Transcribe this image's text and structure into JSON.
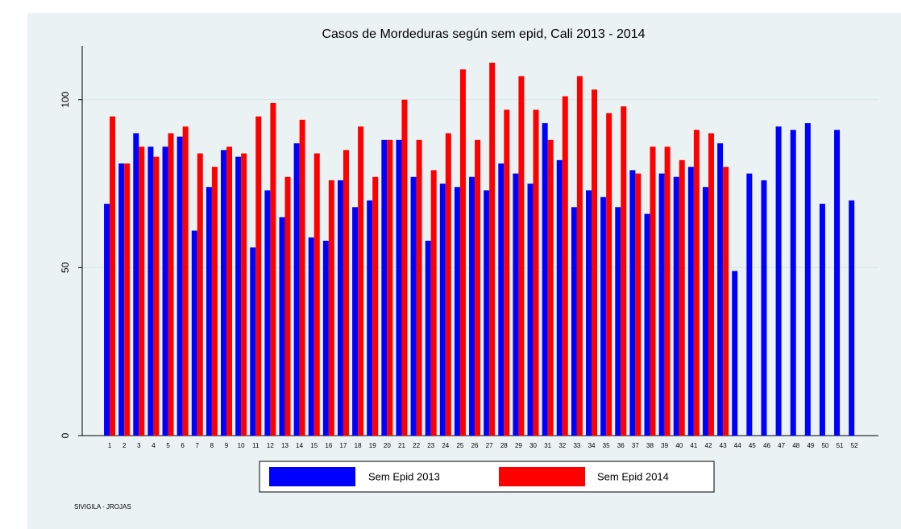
{
  "chart_data": {
    "type": "bar",
    "title": "Casos de Mordeduras según sem epid, Cali 2013 - 2014",
    "categories": [
      "1",
      "2",
      "3",
      "4",
      "5",
      "6",
      "7",
      "8",
      "9",
      "10",
      "11",
      "12",
      "13",
      "14",
      "15",
      "16",
      "17",
      "18",
      "19",
      "20",
      "21",
      "22",
      "23",
      "24",
      "25",
      "26",
      "27",
      "28",
      "29",
      "30",
      "31",
      "32",
      "33",
      "34",
      "35",
      "36",
      "37",
      "38",
      "39",
      "40",
      "41",
      "42",
      "43",
      "44",
      "45",
      "46",
      "47",
      "48",
      "49",
      "50",
      "51",
      "52"
    ],
    "series": [
      {
        "name": "Sem Epid 2013",
        "color": "#0000ff",
        "values": [
          69,
          81,
          90,
          86,
          86,
          89,
          61,
          74,
          85,
          83,
          56,
          73,
          65,
          87,
          59,
          58,
          76,
          68,
          70,
          88,
          88,
          77,
          58,
          75,
          74,
          77,
          73,
          81,
          78,
          75,
          93,
          82,
          68,
          73,
          71,
          68,
          79,
          66,
          78,
          77,
          80,
          74,
          87,
          49,
          78,
          76,
          92,
          91,
          93,
          69,
          91,
          70
        ]
      },
      {
        "name": "Sem Epid 2014",
        "color": "#ff0000",
        "values": [
          95,
          81,
          86,
          83,
          90,
          92,
          84,
          80,
          86,
          84,
          95,
          99,
          77,
          94,
          84,
          76,
          85,
          92,
          77,
          88,
          100,
          88,
          79,
          90,
          109,
          88,
          111,
          97,
          107,
          97,
          88,
          101,
          107,
          103,
          96,
          98,
          78,
          86,
          86,
          82,
          91,
          90,
          80,
          null,
          null,
          null,
          null,
          null,
          null,
          null,
          null,
          null
        ]
      }
    ],
    "ylim": [
      0,
      116
    ],
    "yticks": [
      0,
      50,
      100
    ],
    "grid": true,
    "legend": "bottom",
    "caption": "SIVIGILA - JROJAS"
  }
}
